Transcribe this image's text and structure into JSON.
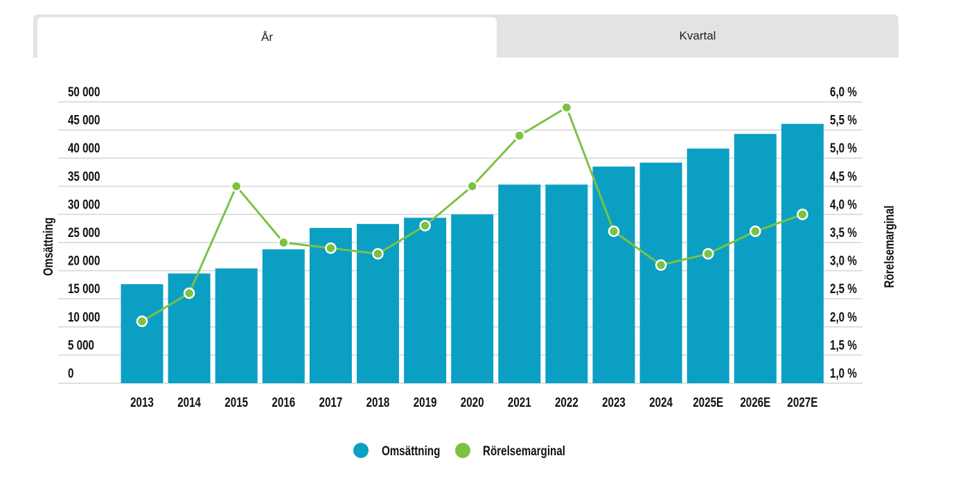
{
  "tabs": [
    {
      "label": "År",
      "active": true
    },
    {
      "label": "Kvartal",
      "active": false
    }
  ],
  "chart_data": {
    "type": "bar",
    "categories": [
      "2013",
      "2014",
      "2015",
      "2016",
      "2017",
      "2018",
      "2019",
      "2020",
      "2021",
      "2022",
      "2023",
      "2024",
      "2025E",
      "2026E",
      "2027E"
    ],
    "series": [
      {
        "name": "Omsättning",
        "type": "bar",
        "axis": "left",
        "color": "#0b9fc4",
        "values": [
          17600,
          19500,
          20400,
          23800,
          27600,
          28300,
          29400,
          30000,
          35300,
          35300,
          38500,
          39200,
          41700,
          44300,
          46100
        ]
      },
      {
        "name": "Rörelsemarginal",
        "type": "line",
        "axis": "right",
        "color": "#7cc242",
        "values": [
          2.1,
          2.6,
          4.5,
          3.5,
          3.4,
          3.3,
          3.8,
          4.5,
          5.4,
          5.9,
          3.7,
          3.1,
          3.3,
          3.7,
          4.0
        ]
      }
    ],
    "ylabel": "Omsättning",
    "y2label": "Rörelsemarginal",
    "ylim": [
      0,
      50000
    ],
    "y2lim": [
      1.0,
      6.0
    ],
    "yticks": [
      "0",
      "5 000",
      "10 000",
      "15 000",
      "20 000",
      "25 000",
      "30 000",
      "35 000",
      "40 000",
      "45 000",
      "50 000"
    ],
    "y2ticks": [
      "1,0 %",
      "1,5 %",
      "2,0 %",
      "2,5 %",
      "3,0 %",
      "3,5 %",
      "4,0 %",
      "4,5 %",
      "5,0 %",
      "5,5 %",
      "6,0 %"
    ],
    "grid": true,
    "legend_position": "bottom"
  }
}
